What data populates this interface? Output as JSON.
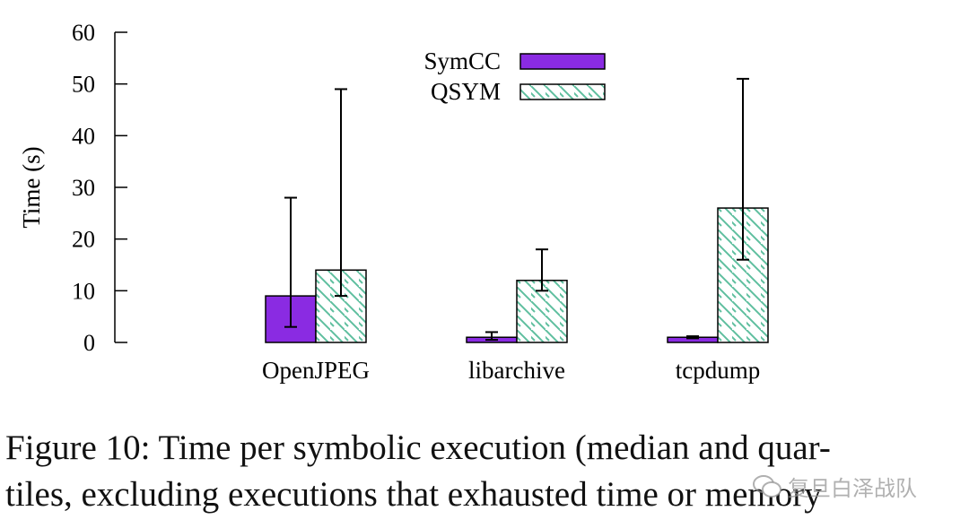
{
  "chart_data": {
    "type": "bar",
    "ylabel": "Time (s)",
    "xlabel": "",
    "ylim": [
      0,
      60
    ],
    "yticks": [
      0,
      10,
      20,
      30,
      40,
      50,
      60
    ],
    "categories": [
      "OpenJPEG",
      "libarchive",
      "tcpdump"
    ],
    "legend_position": "top-center",
    "grid": false,
    "series": [
      {
        "name": "SymCC",
        "color": "#8a2be2",
        "fill": "solid",
        "values": [
          9,
          1,
          1
        ],
        "error_low": [
          3,
          0.5,
          0.8
        ],
        "error_high": [
          28,
          2,
          1.2
        ]
      },
      {
        "name": "QSYM",
        "color": "#5fbf9f",
        "fill": "diagonal-hatch",
        "values": [
          14,
          12,
          26
        ],
        "error_low": [
          9,
          10,
          16
        ],
        "error_high": [
          49,
          18,
          51
        ]
      }
    ]
  },
  "caption": {
    "line1": "Figure 10: Time per symbolic execution (median and quar-",
    "line2": "tiles, excluding executions that exhausted time or memory"
  },
  "watermark": {
    "text": "复旦白泽战队",
    "icon": "wechat-icon"
  }
}
